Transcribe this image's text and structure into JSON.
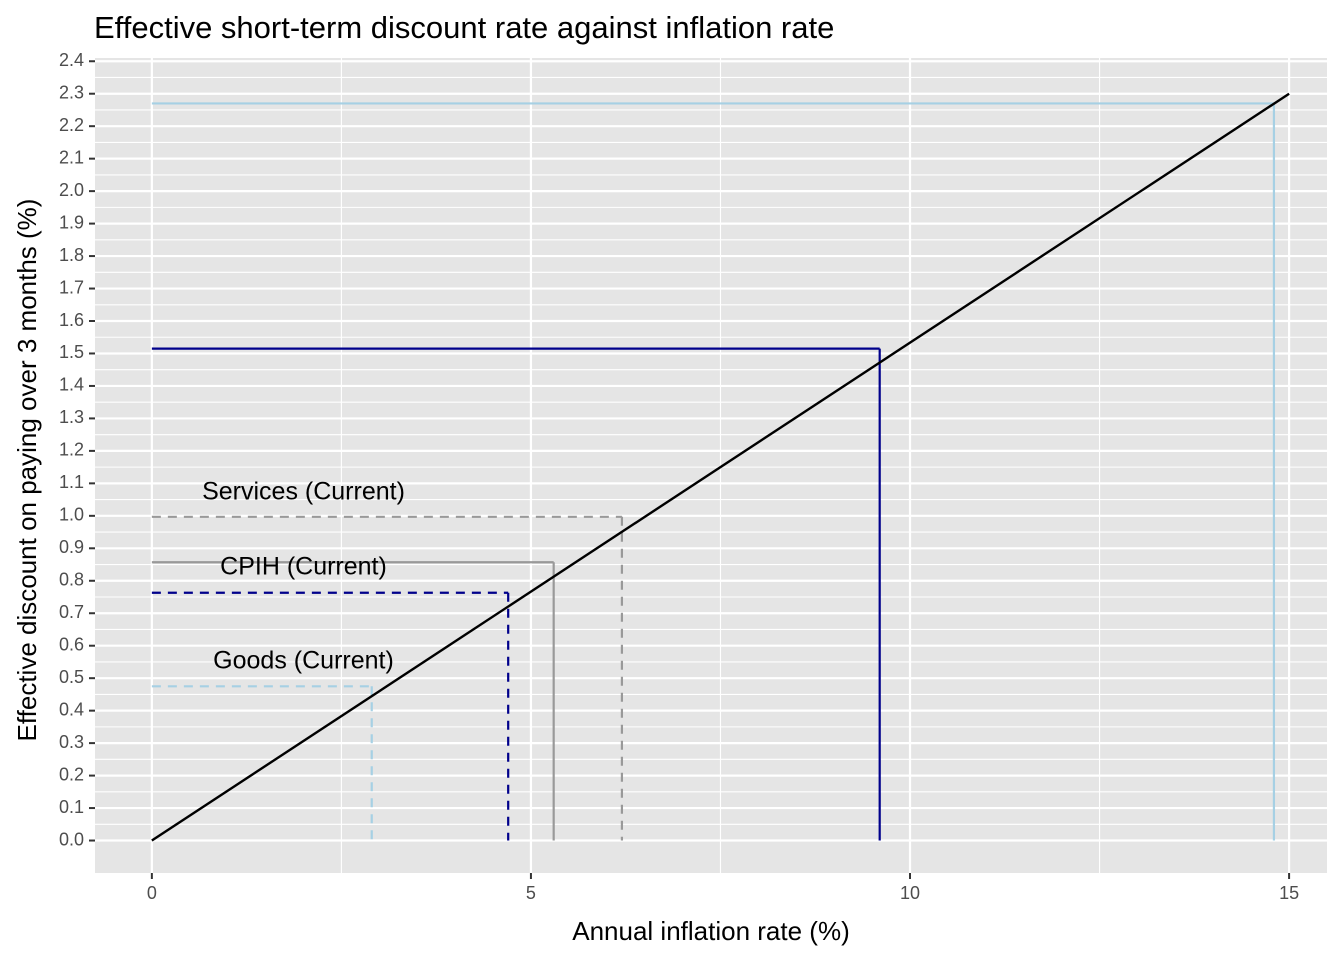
{
  "chart_data": {
    "type": "line",
    "title": "Effective short-term discount rate against inflation rate",
    "xlabel": "Annual inflation rate (%)",
    "ylabel": "Effective discount on paying over 3 months (%)",
    "xlim": [
      -0.75,
      15.5
    ],
    "ylim": [
      -0.1,
      2.41
    ],
    "x_ticks": [
      0,
      5,
      10,
      15
    ],
    "x_tick_labels": [
      "0",
      "5",
      "10",
      "15"
    ],
    "y_ticks": [
      0.0,
      0.1,
      0.2,
      0.3,
      0.4,
      0.5,
      0.6,
      0.7,
      0.8,
      0.9,
      1.0,
      1.1,
      1.2,
      1.3,
      1.4,
      1.5,
      1.6,
      1.7,
      1.8,
      1.9,
      2.0,
      2.1,
      2.2,
      2.3,
      2.4
    ],
    "y_tick_labels": [
      "0.0",
      "0.1",
      "0.2",
      "0.3",
      "0.4",
      "0.5",
      "0.6",
      "0.7",
      "0.8",
      "0.9",
      "1.0",
      "1.1",
      "1.2",
      "1.3",
      "1.4",
      "1.5",
      "1.6",
      "1.7",
      "1.8",
      "1.9",
      "2.0",
      "2.1",
      "2.2",
      "2.3",
      "2.4"
    ],
    "grid": true,
    "panel_background": "#e5e5e5",
    "curve": {
      "color": "#000000",
      "x": [
        0,
        15
      ],
      "y": [
        0.0,
        2.3
      ]
    },
    "reference_lines": [
      {
        "x": 2.9,
        "y": 0.475,
        "color": "#a6d0e4",
        "dashed": true,
        "label": "Goods (Current)",
        "label_x": 2.0,
        "label_y": 0.55
      },
      {
        "x": 4.7,
        "y": 0.763,
        "color": "#00008b",
        "dashed": true,
        "label": "",
        "label_x": null,
        "label_y": null
      },
      {
        "x": 5.3,
        "y": 0.857,
        "color": "#999999",
        "dashed": false,
        "label": "CPIH (Current)",
        "label_x": 2.0,
        "label_y": 0.84
      },
      {
        "x": 6.2,
        "y": 0.997,
        "color": "#999999",
        "dashed": true,
        "label": "Services (Current)",
        "label_x": 2.0,
        "label_y": 1.07
      },
      {
        "x": 9.6,
        "y": 1.515,
        "color": "#00008b",
        "dashed": false,
        "label": "",
        "label_x": null,
        "label_y": null
      },
      {
        "x": 14.8,
        "y": 2.27,
        "color": "#a6d0e4",
        "dashed": false,
        "label": "",
        "label_x": null,
        "label_y": null
      }
    ]
  }
}
